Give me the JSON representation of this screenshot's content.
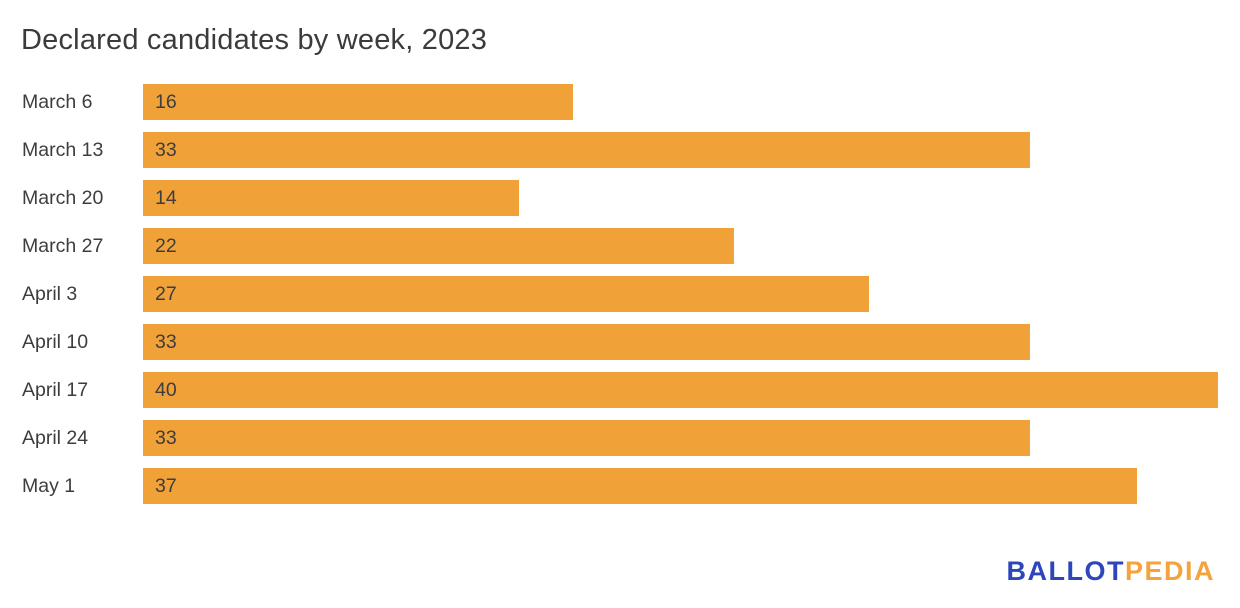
{
  "title": "Declared candidates by week, 2023",
  "chart_data": {
    "type": "bar",
    "orientation": "horizontal",
    "title": "Declared candidates by week, 2023",
    "categories": [
      "March 6",
      "March 13",
      "March 20",
      "March 27",
      "April 3",
      "April 10",
      "April 17",
      "April 24",
      "May 1"
    ],
    "values": [
      16,
      33,
      14,
      22,
      27,
      33,
      40,
      33,
      37
    ],
    "xlabel": "",
    "ylabel": "",
    "xlim": [
      0,
      40
    ],
    "grid": false,
    "legend_position": "none",
    "value_labels": "inside-left",
    "bar_color": "#f0a239"
  },
  "colors": {
    "bar": "#f0a239",
    "text": "#3d3d3d",
    "title_text": "#3b3b3b",
    "logo_blue": "#2d47bb",
    "logo_orange": "#f5a33c",
    "background": "#ffffff"
  },
  "footer": {
    "logo_part1": "BALLOT",
    "logo_part2": "PEDIA"
  }
}
